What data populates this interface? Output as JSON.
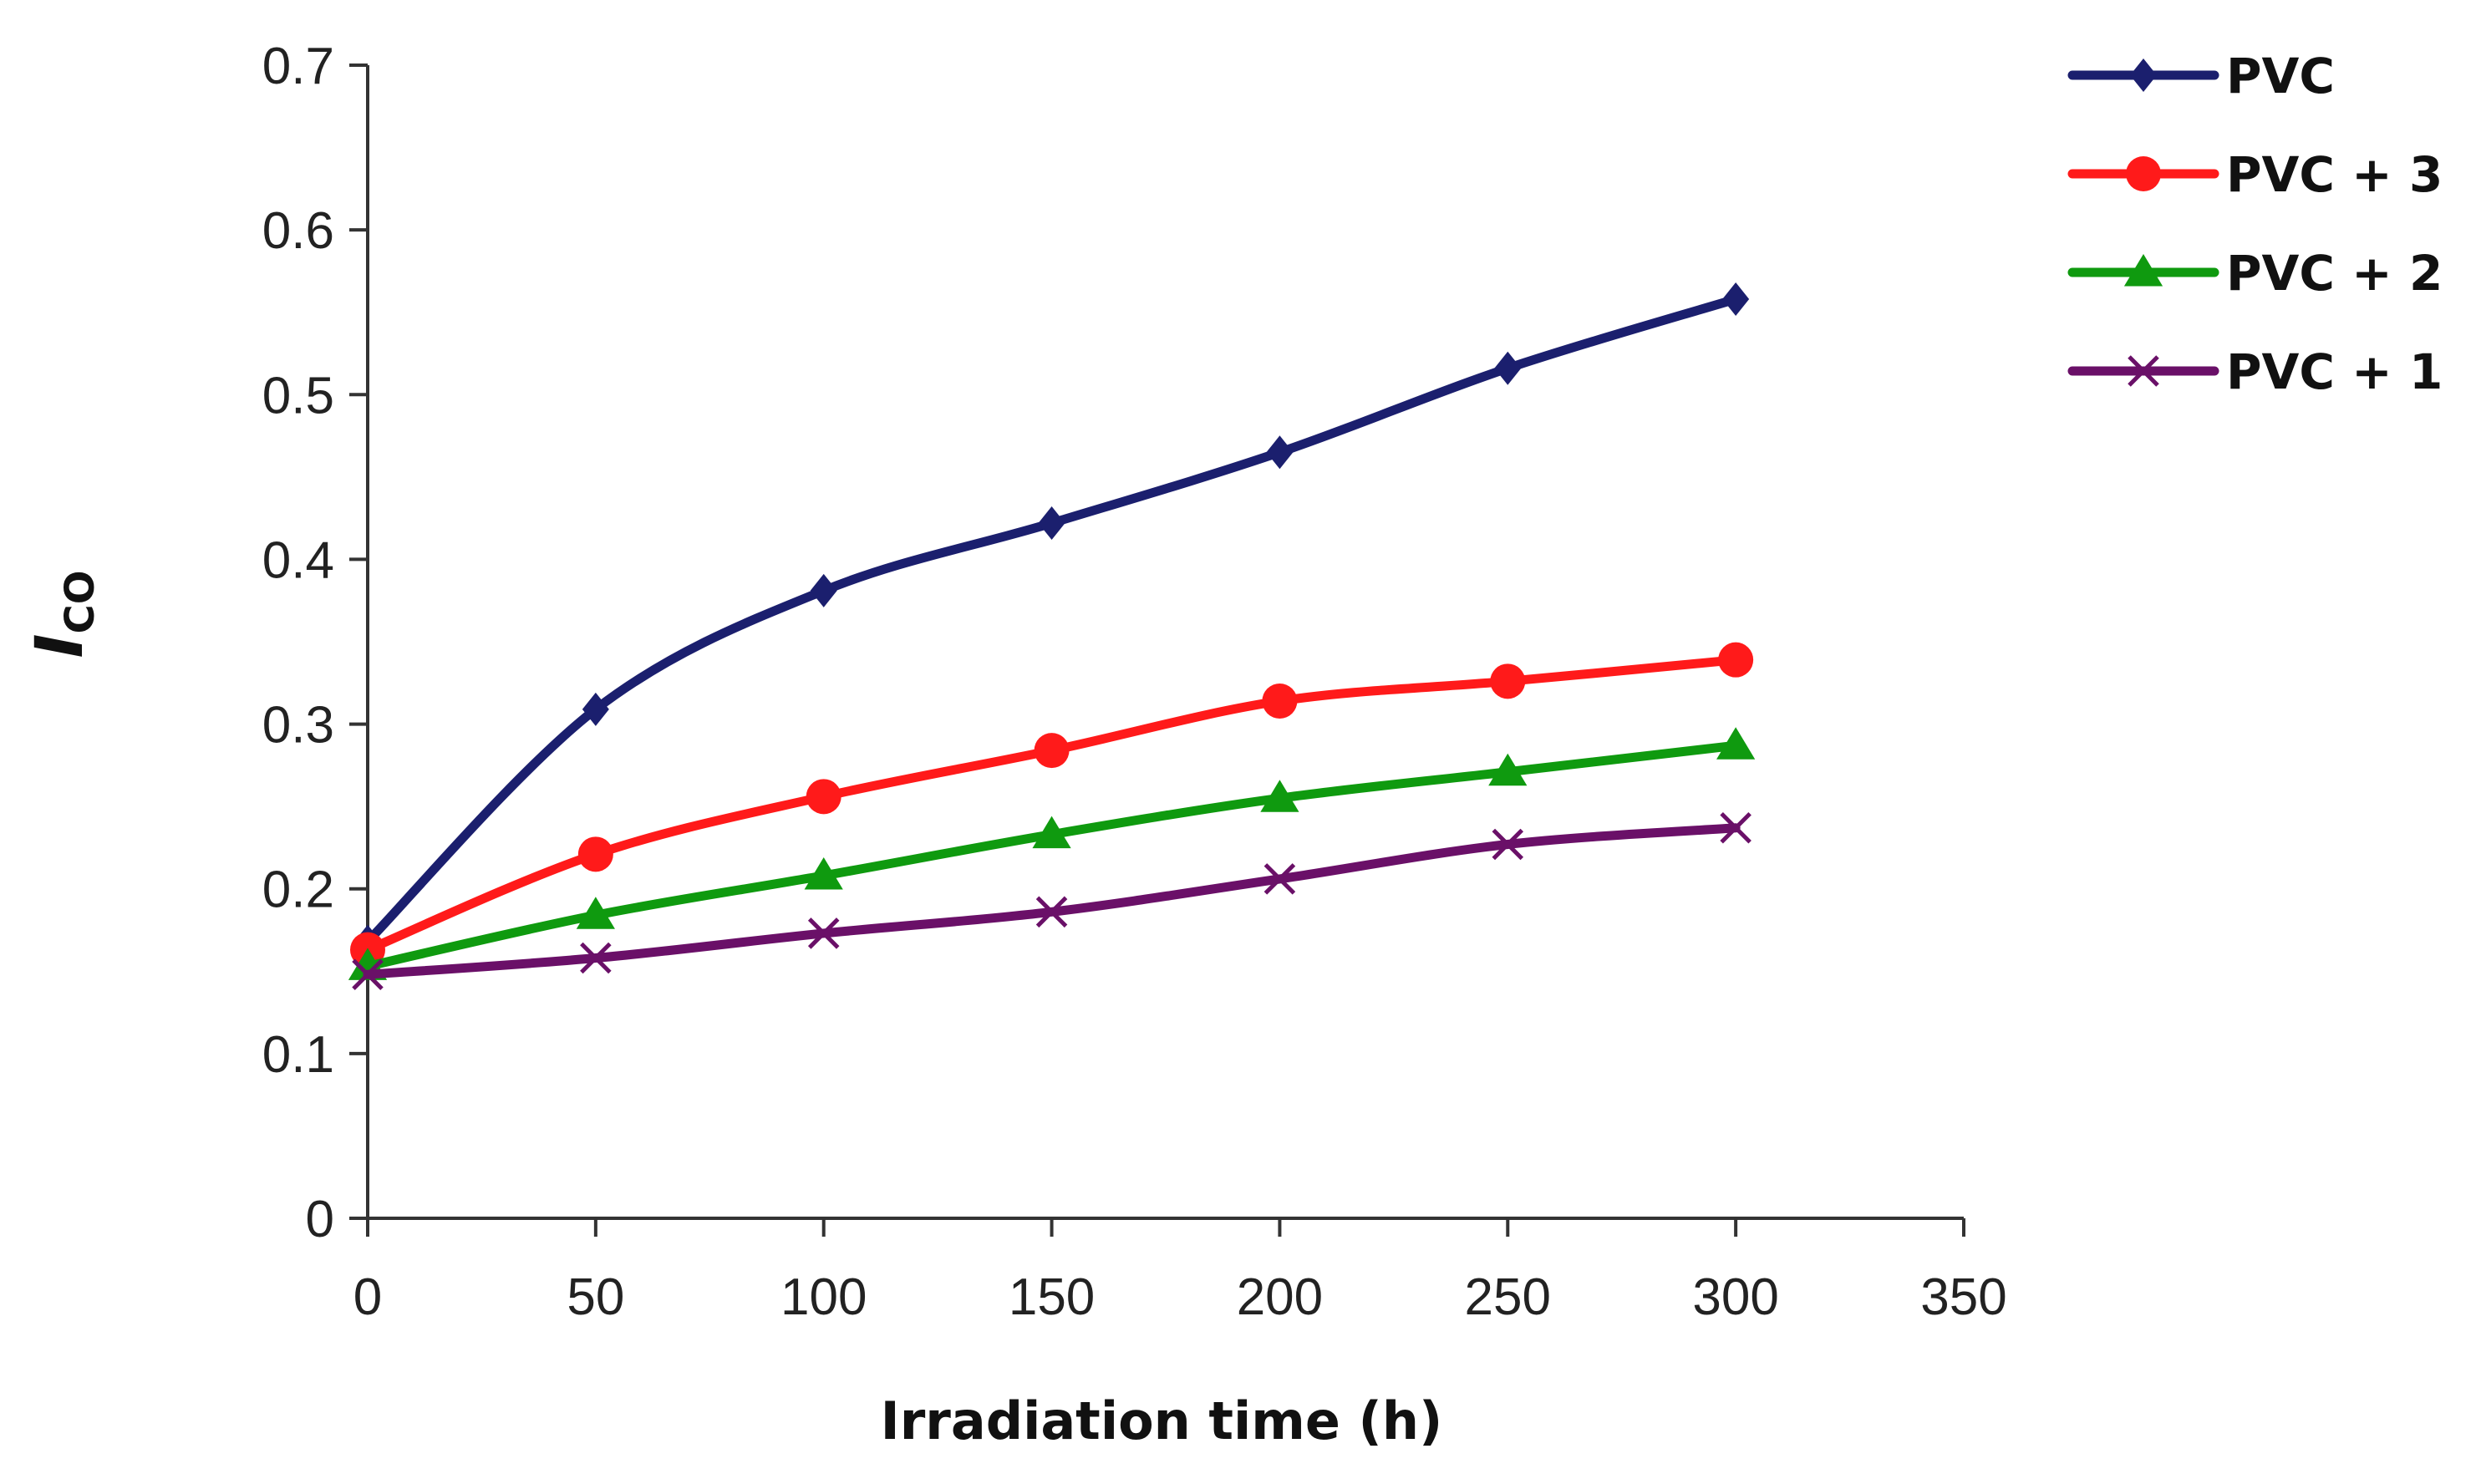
{
  "chart_data": {
    "type": "line",
    "title": "",
    "xlabel": "Irradiation time (h)",
    "ylabel_main": "I",
    "ylabel_sub": "CO",
    "x": [
      0,
      50,
      100,
      150,
      200,
      250,
      300
    ],
    "xlim": [
      0,
      350
    ],
    "ylim": [
      0,
      0.7
    ],
    "xticks": [
      "0",
      "50",
      "100",
      "150",
      "200",
      "250",
      "300",
      "350"
    ],
    "yticks": [
      "0",
      "0.1",
      "0.2",
      "0.3",
      "0.4",
      "0.5",
      "0.6",
      "0.7"
    ],
    "grid": false,
    "legend_position": "right",
    "series": [
      {
        "name": "PVC",
        "color": "#1b1f6e",
        "marker": "diamond",
        "values": [
          0.168,
          0.309,
          0.381,
          0.422,
          0.465,
          0.516,
          0.558
        ]
      },
      {
        "name": "PVC + 3",
        "color": "#ff1a1a",
        "marker": "circle",
        "values": [
          0.163,
          0.221,
          0.256,
          0.284,
          0.314,
          0.326,
          0.339
        ]
      },
      {
        "name": "PVC + 2",
        "color": "#0f9a0f",
        "marker": "triangle",
        "values": [
          0.153,
          0.184,
          0.208,
          0.233,
          0.255,
          0.271,
          0.287
        ]
      },
      {
        "name": "PVC + 1",
        "color": "#6a1068",
        "marker": "cross",
        "values": [
          0.148,
          0.158,
          0.173,
          0.186,
          0.206,
          0.227,
          0.237
        ]
      }
    ]
  }
}
